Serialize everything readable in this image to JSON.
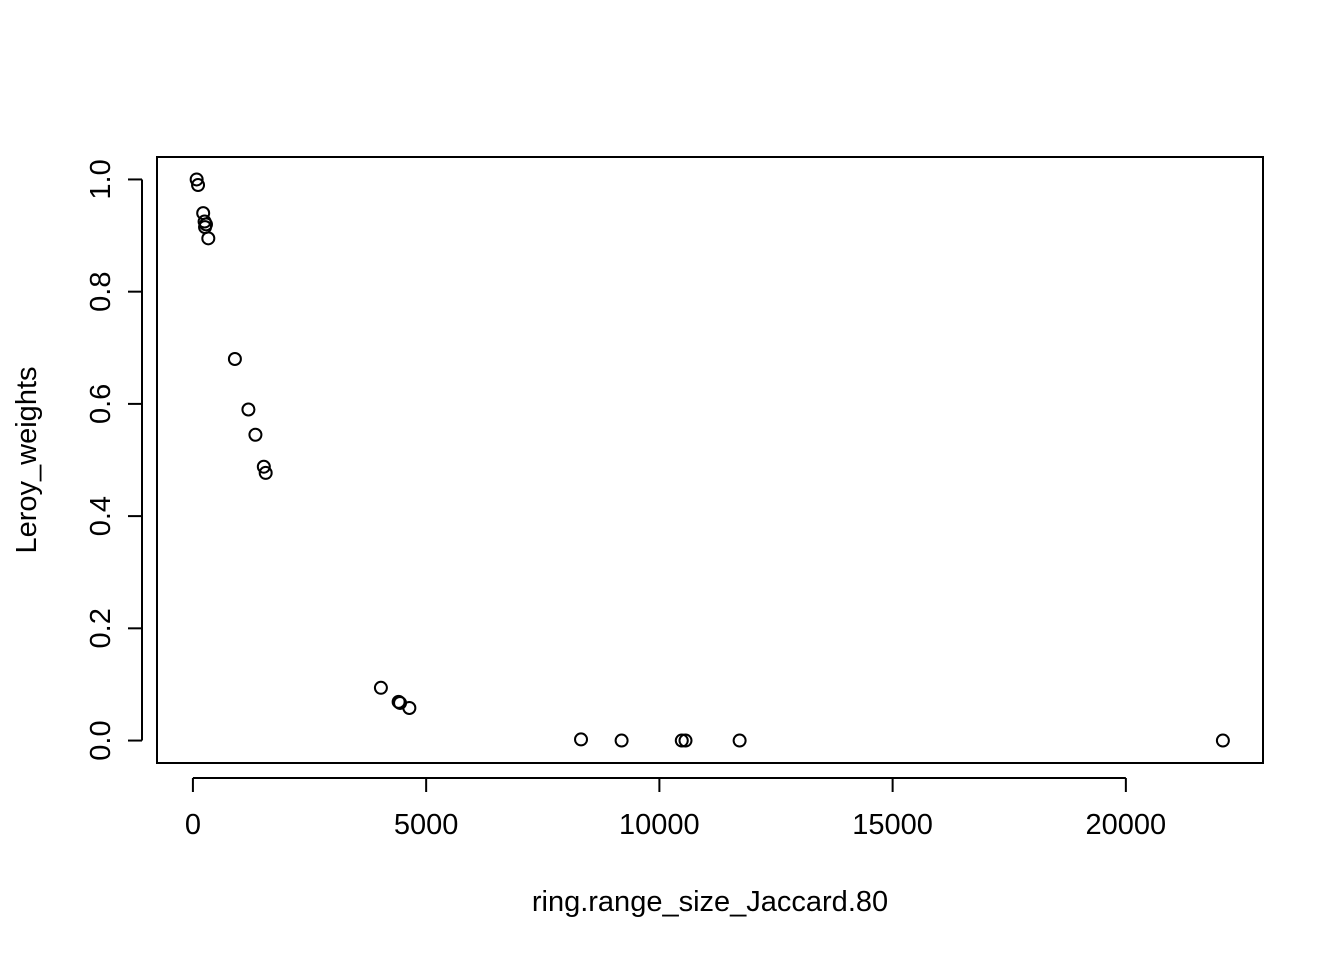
{
  "chart_data": {
    "type": "scatter",
    "title": "",
    "xlabel": "ring.range_size_Jaccard.80",
    "ylabel": "Leroy_weights",
    "xlim": [
      -770,
      22940
    ],
    "ylim": [
      -0.04,
      1.04
    ],
    "x_ticks": [
      0,
      5000,
      10000,
      15000,
      20000
    ],
    "x_tick_labels": [
      "0",
      "5000",
      "10000",
      "15000",
      "20000"
    ],
    "y_ticks": [
      0.0,
      0.2,
      0.4,
      0.6,
      0.8,
      1.0
    ],
    "y_tick_labels": [
      "0.0",
      "0.2",
      "0.4",
      "0.6",
      "0.8",
      "1.0"
    ],
    "grid": false,
    "legend": "none",
    "marker": "open-circle",
    "color": "#000000",
    "points": [
      {
        "x": 80,
        "y": 1.0
      },
      {
        "x": 110,
        "y": 0.99
      },
      {
        "x": 220,
        "y": 0.94
      },
      {
        "x": 250,
        "y": 0.925
      },
      {
        "x": 280,
        "y": 0.92
      },
      {
        "x": 260,
        "y": 0.915
      },
      {
        "x": 330,
        "y": 0.895
      },
      {
        "x": 900,
        "y": 0.68
      },
      {
        "x": 1190,
        "y": 0.59
      },
      {
        "x": 1340,
        "y": 0.545
      },
      {
        "x": 1520,
        "y": 0.488
      },
      {
        "x": 1560,
        "y": 0.477
      },
      {
        "x": 4030,
        "y": 0.094
      },
      {
        "x": 4410,
        "y": 0.069
      },
      {
        "x": 4440,
        "y": 0.067
      },
      {
        "x": 4640,
        "y": 0.058
      },
      {
        "x": 8320,
        "y": 0.002
      },
      {
        "x": 9190,
        "y": 0.0
      },
      {
        "x": 10480,
        "y": 0.0
      },
      {
        "x": 10560,
        "y": 0.0
      },
      {
        "x": 11720,
        "y": 0.0
      },
      {
        "x": 22080,
        "y": 0.0
      }
    ]
  }
}
